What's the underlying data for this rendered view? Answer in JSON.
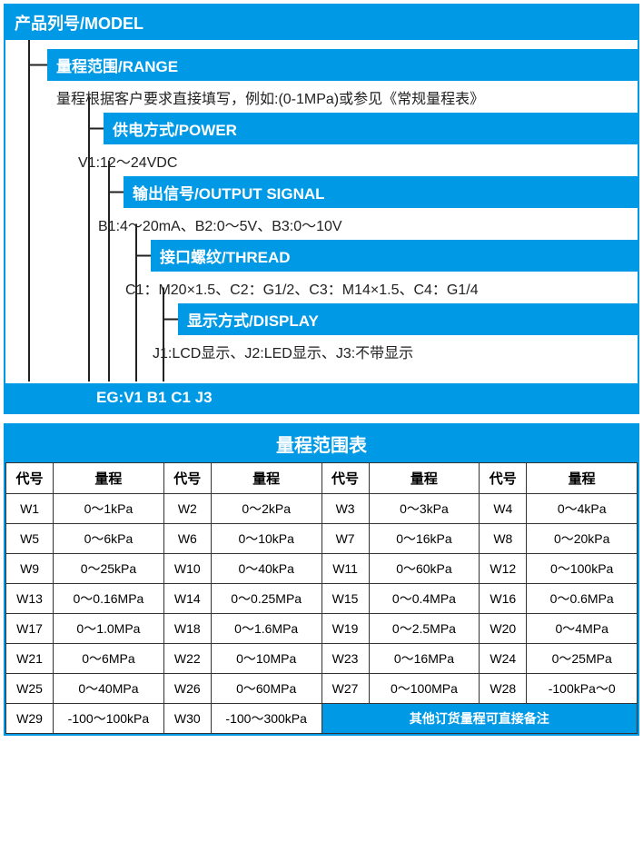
{
  "colors": {
    "accent": "#0099e5",
    "text": "#222222",
    "border": "#333333",
    "bg": "#ffffff",
    "line": "#222222"
  },
  "model_header": "产品列号/MODEL",
  "tree": [
    {
      "indent": 46,
      "header": "量程范围/RANGE",
      "content": "量程根据客户要求直接填写，例如:(0-1MPa)或参见《常规量程表》"
    },
    {
      "indent": 108,
      "header": "供电方式/POWER",
      "content": "V1:12～24VDC"
    },
    {
      "indent": 130,
      "header": "输出信号/OUTPUT SIGNAL",
      "content": "B1:4～20mA、B2:0～5V、B3:0～10V"
    },
    {
      "indent": 160,
      "header": "接口螺纹/THREAD",
      "content": "C1：M20×1.5、C2：G1/2、C3：M14×1.5、C4：G1/4"
    },
    {
      "indent": 190,
      "header": "显示方式/DISPLAY",
      "content": "J1:LCD显示、J2:LED显示、J3:不带显示"
    }
  ],
  "eg_label": "EG:V1 B1 C1 J3",
  "range_table": {
    "title": "量程范围表",
    "col_header_code": "代号",
    "col_header_range": "量程",
    "rows": [
      [
        {
          "c": "W1",
          "r": "0～1kPa"
        },
        {
          "c": "W2",
          "r": "0～2kPa"
        },
        {
          "c": "W3",
          "r": "0～3kPa"
        },
        {
          "c": "W4",
          "r": "0～4kPa"
        }
      ],
      [
        {
          "c": "W5",
          "r": "0～6kPa"
        },
        {
          "c": "W6",
          "r": "0～10kPa"
        },
        {
          "c": "W7",
          "r": "0～16kPa"
        },
        {
          "c": "W8",
          "r": "0～20kPa"
        }
      ],
      [
        {
          "c": "W9",
          "r": "0～25kPa"
        },
        {
          "c": "W10",
          "r": "0～40kPa"
        },
        {
          "c": "W11",
          "r": "0～60kPa"
        },
        {
          "c": "W12",
          "r": "0～100kPa"
        }
      ],
      [
        {
          "c": "W13",
          "r": "0～0.16MPa"
        },
        {
          "c": "W14",
          "r": "0～0.25MPa"
        },
        {
          "c": "W15",
          "r": "0～0.4MPa"
        },
        {
          "c": "W16",
          "r": "0～0.6MPa"
        }
      ],
      [
        {
          "c": "W17",
          "r": "0～1.0MPa"
        },
        {
          "c": "W18",
          "r": "0～1.6MPa"
        },
        {
          "c": "W19",
          "r": "0～2.5MPa"
        },
        {
          "c": "W20",
          "r": "0～4MPa"
        }
      ],
      [
        {
          "c": "W21",
          "r": "0～6MPa"
        },
        {
          "c": "W22",
          "r": "0～10MPa"
        },
        {
          "c": "W23",
          "r": "0～16MPa"
        },
        {
          "c": "W24",
          "r": "0～25MPa"
        }
      ],
      [
        {
          "c": "W25",
          "r": "0～40MPa"
        },
        {
          "c": "W26",
          "r": "0～60MPa"
        },
        {
          "c": "W27",
          "r": "0～100MPa"
        },
        {
          "c": "W28",
          "r": "-100kPa～0"
        }
      ]
    ],
    "last_row": [
      {
        "c": "W29",
        "r": "-100～100kPa"
      },
      {
        "c": "W30",
        "r": "-100～300kPa"
      }
    ],
    "note": "其他订货量程可直接备注"
  }
}
